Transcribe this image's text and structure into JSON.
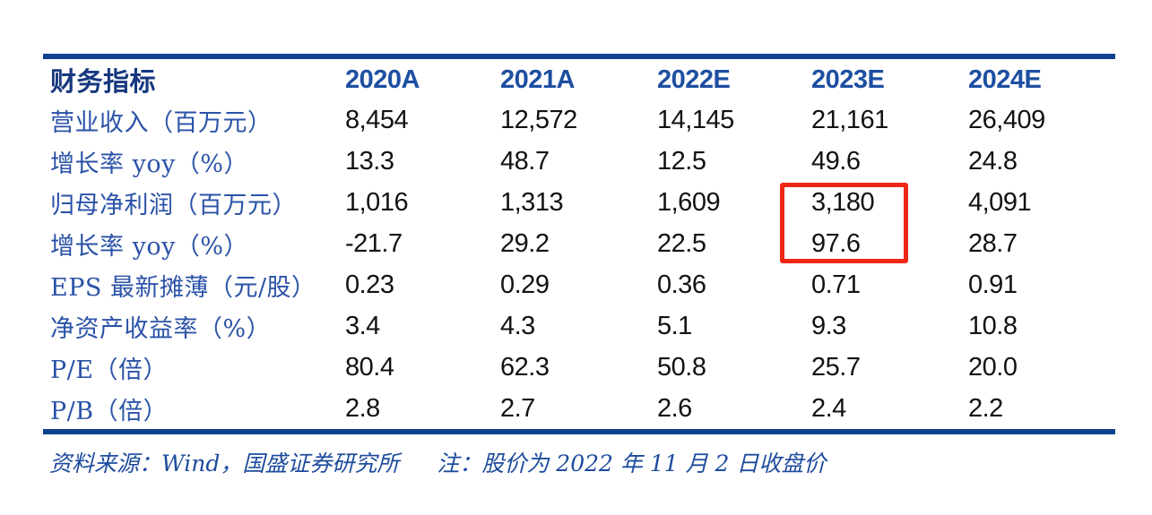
{
  "table": {
    "header": {
      "label": "财务指标",
      "years": [
        "2020A",
        "2021A",
        "2022E",
        "2023E",
        "2024E"
      ]
    },
    "rows": [
      {
        "label": "营业收入（百万元）",
        "values": [
          "8,454",
          "12,572",
          "14,145",
          "21,161",
          "26,409"
        ]
      },
      {
        "label": "增长率 yoy（%）",
        "values": [
          "13.3",
          "48.7",
          "12.5",
          "49.6",
          "24.8"
        ]
      },
      {
        "label": "归母净利润（百万元）",
        "values": [
          "1,016",
          "1,313",
          "1,609",
          "3,180",
          "4,091"
        ]
      },
      {
        "label": "增长率 yoy（%）",
        "values": [
          "-21.7",
          "29.2",
          "22.5",
          "97.6",
          "28.7"
        ]
      },
      {
        "label": "EPS 最新摊薄（元/股）",
        "values": [
          "0.23",
          "0.29",
          "0.36",
          "0.71",
          "0.91"
        ]
      },
      {
        "label": "净资产收益率（%）",
        "values": [
          "3.4",
          "4.3",
          "5.1",
          "9.3",
          "10.8"
        ]
      },
      {
        "label": "P/E（倍）",
        "values": [
          "80.4",
          "62.3",
          "50.8",
          "25.7",
          "20.0"
        ]
      },
      {
        "label": "P/B（倍）",
        "values": [
          "2.8",
          "2.7",
          "2.6",
          "2.4",
          "2.2"
        ]
      }
    ],
    "highlight": {
      "column": "2023E",
      "highlighted_values": [
        "3,180",
        "97.6"
      ],
      "color": "#ee2716"
    }
  },
  "footer": {
    "source": "资料来源：Wind，国盛证券研究所",
    "note": "注：股价为 2022 年 11 月 2 日收盘价"
  },
  "colors": {
    "rule_navy": "#10418f",
    "header_label_blue": "#17387f",
    "header_year_blue": "#1d4fa1",
    "row_label_blue": "#2a52a7",
    "value_black": "#121212",
    "highlight_red": "#ee2716",
    "footer_blue": "#1d4b9d"
  }
}
